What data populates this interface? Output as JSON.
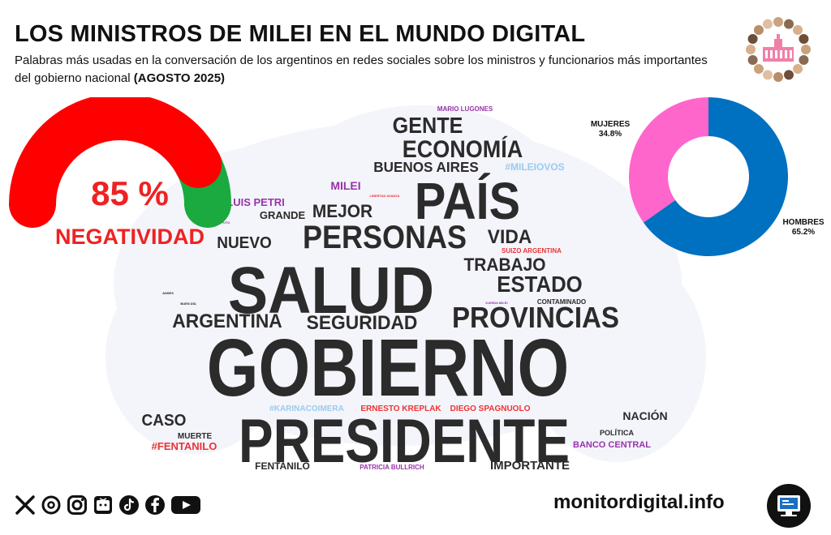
{
  "header": {
    "title": "LOS MINISTROS DE MILEI EN EL MUNDO DIGITAL",
    "subtitle": "Palabras más usadas en la conversación de los argentinos en redes sociales sobre los ministros y funcionarios más importantes del gobierno nacional",
    "subtitle_period": "(AGOSTO 2025)"
  },
  "footer": {
    "site": "monitordigital.info",
    "icons": [
      "x-icon",
      "threads-icon",
      "instagram-icon",
      "tv-icon",
      "tiktok-icon",
      "facebook-icon",
      "youtube-icon"
    ]
  },
  "colors": {
    "negative": "#ff0000",
    "positive": "#1aaa3f",
    "women": "#ff66cc",
    "men": "#0070c0",
    "word_dark": "#2b2b2b",
    "word_purple": "#9933aa",
    "word_red": "#ee3333",
    "word_lightblue": "#99ccee"
  },
  "chart_data": [
    {
      "type": "gauge",
      "value": 85,
      "value_label": "85 %",
      "label": "NEGATIVIDAD"
    },
    {
      "type": "pie",
      "hole": true,
      "slices": [
        {
          "name": "MUJERES",
          "value": 34.8,
          "label": "34.8%"
        },
        {
          "name": "HOMBRES",
          "value": 65.2,
          "label": "65.2%"
        }
      ]
    },
    {
      "type": "wordcloud",
      "words": [
        {
          "text": "GOBIERNO",
          "size": 100,
          "color": "dark"
        },
        {
          "text": "PRESIDENTE",
          "size": 76,
          "color": "dark"
        },
        {
          "text": "SALUD",
          "size": 82,
          "color": "dark"
        },
        {
          "text": "PAÍS",
          "size": 64,
          "color": "dark"
        },
        {
          "text": "PERSONAS",
          "size": 40,
          "color": "dark"
        },
        {
          "text": "PROVINCIAS",
          "size": 36,
          "color": "dark"
        },
        {
          "text": "ECONOMÍA",
          "size": 30,
          "color": "dark"
        },
        {
          "text": "ESTADO",
          "size": 28,
          "color": "dark"
        },
        {
          "text": "GENTE",
          "size": 28,
          "color": "dark"
        },
        {
          "text": "SEGURIDAD",
          "size": 24,
          "color": "dark"
        },
        {
          "text": "ARGENTINA",
          "size": 24,
          "color": "dark"
        },
        {
          "text": "VIDA",
          "size": 24,
          "color": "dark"
        },
        {
          "text": "MEJOR",
          "size": 22,
          "color": "dark"
        },
        {
          "text": "TRABAJO",
          "size": 22,
          "color": "dark"
        },
        {
          "text": "NUEVO",
          "size": 20,
          "color": "dark"
        },
        {
          "text": "CASO",
          "size": 20,
          "color": "dark"
        },
        {
          "text": "BUENOS AIRES",
          "size": 18,
          "color": "dark"
        },
        {
          "text": "MILEI",
          "size": 14,
          "color": "purple"
        },
        {
          "text": "LUIS PETRI",
          "size": 13,
          "color": "purple"
        },
        {
          "text": "GRANDE",
          "size": 13,
          "color": "dark"
        },
        {
          "text": "#MILEIOVOS",
          "size": 12,
          "color": "lightblue"
        },
        {
          "text": "#FENTANILO",
          "size": 13,
          "color": "red"
        },
        {
          "text": "BANCO CENTRAL",
          "size": 11,
          "color": "purple"
        },
        {
          "text": "IMPORTANTE",
          "size": 15,
          "color": "dark"
        },
        {
          "text": "NACIÓN",
          "size": 14,
          "color": "dark"
        },
        {
          "text": "FENTANILO",
          "size": 12,
          "color": "dark"
        },
        {
          "text": "ERNESTO KREPLAK",
          "size": 10,
          "color": "red"
        },
        {
          "text": "DIEGO SPAGNUOLO",
          "size": 10,
          "color": "red"
        },
        {
          "text": "#KARINACOIMERA",
          "size": 10,
          "color": "lightblue"
        },
        {
          "text": "MUERTE",
          "size": 10,
          "color": "dark"
        },
        {
          "text": "POLÍTICA",
          "size": 9,
          "color": "dark"
        },
        {
          "text": "PATRICIA BULLRICH",
          "size": 8,
          "color": "purple"
        },
        {
          "text": "SUIZO ARGENTINA",
          "size": 8,
          "color": "red"
        },
        {
          "text": "MARIO LUGONES",
          "size": 8,
          "color": "purple"
        },
        {
          "text": "CONTAMINADO",
          "size": 8,
          "color": "dark"
        },
        {
          "text": "LIBERTAD AVANZA",
          "size": 4,
          "color": "red"
        },
        {
          "text": "LISE CAPUTO",
          "size": 4,
          "color": "purple"
        },
        {
          "text": "BUEN DÍA",
          "size": 4,
          "color": "dark"
        },
        {
          "text": "ANSES",
          "size": 4,
          "color": "dark"
        },
        {
          "text": "KARINA MILEI",
          "size": 4,
          "color": "purple"
        }
      ]
    }
  ]
}
